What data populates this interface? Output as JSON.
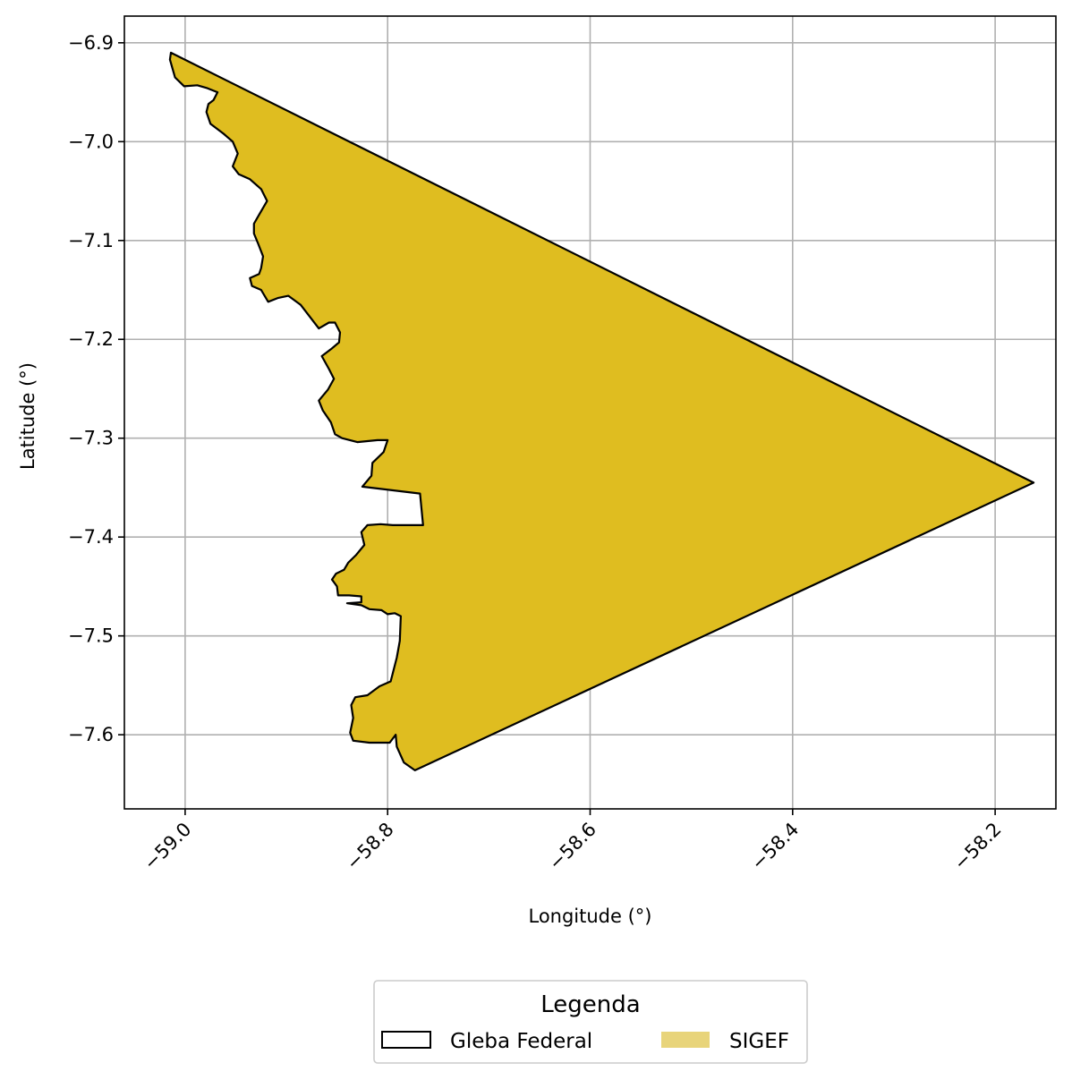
{
  "chart_data": {
    "type": "map",
    "xlabel": "Longitude (°)",
    "ylabel": "Latitude (°)",
    "xlim": [
      -59.06,
      -58.14
    ],
    "ylim": [
      -7.675,
      -6.873
    ],
    "xticks": [
      -59.0,
      -58.8,
      -58.6,
      -58.4,
      -58.2
    ],
    "xtick_labels": [
      "−59.0",
      "−58.8",
      "−58.6",
      "−58.4",
      "−58.2"
    ],
    "yticks": [
      -6.9,
      -7.0,
      -7.1,
      -7.2,
      -7.3,
      -7.4,
      -7.5,
      -7.6
    ],
    "ytick_labels": [
      "−6.9",
      "−7.0",
      "−7.1",
      "−7.2",
      "−7.3",
      "−7.4",
      "−7.5",
      "−7.6"
    ],
    "grid": true,
    "legend": {
      "title": "Legenda",
      "placement": "bottom-center",
      "entries": [
        {
          "label": "Gleba Federal",
          "style": "outline",
          "edge_color": "#000000",
          "fill": "none"
        },
        {
          "label": "SIGEF",
          "style": "fill",
          "fill": "#e8d47a"
        }
      ]
    },
    "layers": [
      {
        "name": "Gleba Federal",
        "fill": "#dfbd20",
        "edge": "#000000",
        "polygon": [
          [
            -59.014,
            -6.91
          ],
          [
            -58.162,
            -7.345
          ],
          [
            -58.773,
            -7.636
          ],
          [
            -58.784,
            -7.628
          ],
          [
            -58.791,
            -7.612
          ],
          [
            -58.792,
            -7.6
          ],
          [
            -58.798,
            -7.608
          ],
          [
            -58.818,
            -7.608
          ],
          [
            -58.834,
            -7.606
          ],
          [
            -58.837,
            -7.598
          ],
          [
            -58.834,
            -7.583
          ],
          [
            -58.836,
            -7.57
          ],
          [
            -58.832,
            -7.562
          ],
          [
            -58.82,
            -7.56
          ],
          [
            -58.808,
            -7.551
          ],
          [
            -58.797,
            -7.546
          ],
          [
            -58.791,
            -7.522
          ],
          [
            -58.788,
            -7.505
          ],
          [
            -58.787,
            -7.48
          ],
          [
            -58.793,
            -7.477
          ],
          [
            -58.8,
            -7.478
          ],
          [
            -58.806,
            -7.474
          ],
          [
            -58.818,
            -7.473
          ],
          [
            -58.826,
            -7.469
          ],
          [
            -58.84,
            -7.467
          ],
          [
            -58.826,
            -7.466
          ],
          [
            -58.826,
            -7.46
          ],
          [
            -58.838,
            -7.459
          ],
          [
            -58.849,
            -7.459
          ],
          [
            -58.85,
            -7.45
          ],
          [
            -58.855,
            -7.443
          ],
          [
            -58.851,
            -7.437
          ],
          [
            -58.843,
            -7.433
          ],
          [
            -58.839,
            -7.426
          ],
          [
            -58.831,
            -7.418
          ],
          [
            -58.823,
            -7.408
          ],
          [
            -58.826,
            -7.395
          ],
          [
            -58.82,
            -7.388
          ],
          [
            -58.807,
            -7.387
          ],
          [
            -58.795,
            -7.388
          ],
          [
            -58.765,
            -7.388
          ],
          [
            -58.768,
            -7.356
          ],
          [
            -58.825,
            -7.349
          ],
          [
            -58.816,
            -7.338
          ],
          [
            -58.815,
            -7.325
          ],
          [
            -58.804,
            -7.314
          ],
          [
            -58.8,
            -7.302
          ],
          [
            -58.81,
            -7.302
          ],
          [
            -58.83,
            -7.304
          ],
          [
            -58.845,
            -7.3
          ],
          [
            -58.852,
            -7.296
          ],
          [
            -58.856,
            -7.284
          ],
          [
            -58.864,
            -7.272
          ],
          [
            -58.868,
            -7.262
          ],
          [
            -58.859,
            -7.251
          ],
          [
            -58.853,
            -7.24
          ],
          [
            -58.858,
            -7.23
          ],
          [
            -58.865,
            -7.217
          ],
          [
            -58.856,
            -7.21
          ],
          [
            -58.848,
            -7.203
          ],
          [
            -58.847,
            -7.193
          ],
          [
            -58.852,
            -7.183
          ],
          [
            -58.858,
            -7.183
          ],
          [
            -58.868,
            -7.189
          ],
          [
            -58.877,
            -7.177
          ],
          [
            -58.886,
            -7.165
          ],
          [
            -58.898,
            -7.156
          ],
          [
            -58.908,
            -7.158
          ],
          [
            -58.918,
            -7.162
          ],
          [
            -58.925,
            -7.15
          ],
          [
            -58.934,
            -7.146
          ],
          [
            -58.936,
            -7.138
          ],
          [
            -58.927,
            -7.134
          ],
          [
            -58.925,
            -7.128
          ],
          [
            -58.923,
            -7.116
          ],
          [
            -58.928,
            -7.103
          ],
          [
            -58.932,
            -7.093
          ],
          [
            -58.932,
            -7.083
          ],
          [
            -58.927,
            -7.074
          ],
          [
            -58.919,
            -7.06
          ],
          [
            -58.925,
            -7.048
          ],
          [
            -58.936,
            -7.038
          ],
          [
            -58.947,
            -7.033
          ],
          [
            -58.953,
            -7.025
          ],
          [
            -58.948,
            -7.012
          ],
          [
            -58.953,
            -7.0
          ],
          [
            -58.962,
            -6.992
          ],
          [
            -58.975,
            -6.982
          ],
          [
            -58.979,
            -6.97
          ],
          [
            -58.977,
            -6.962
          ],
          [
            -58.972,
            -6.958
          ],
          [
            -58.968,
            -6.95
          ],
          [
            -58.978,
            -6.946
          ],
          [
            -58.988,
            -6.943
          ],
          [
            -59.001,
            -6.944
          ],
          [
            -59.01,
            -6.935
          ],
          [
            -59.015,
            -6.917
          ]
        ]
      }
    ]
  }
}
